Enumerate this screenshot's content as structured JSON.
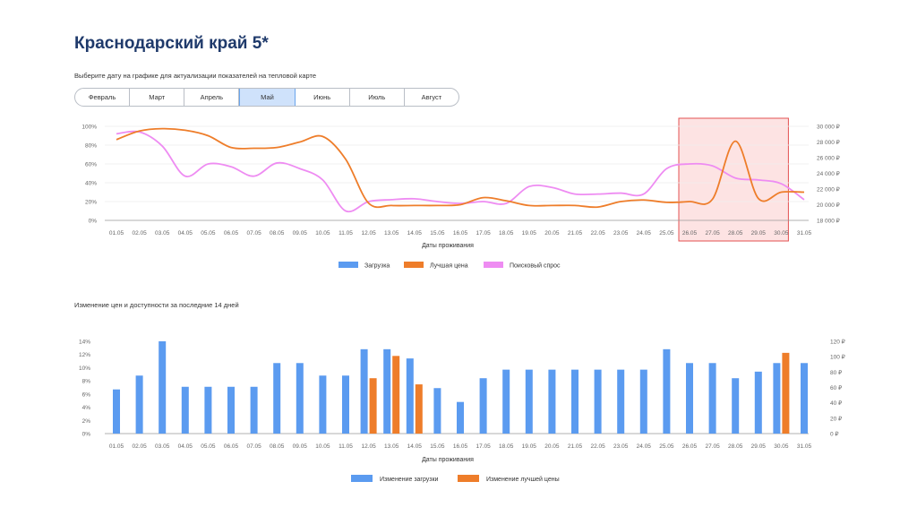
{
  "header": {
    "title": "Краснодарский край 5*",
    "hint": "Выберите дату на графике для актуализации показателей на тепловой карте"
  },
  "months": [
    "Февраль",
    "Март",
    "Апрель",
    "Май",
    "Июнь",
    "Июль",
    "Август"
  ],
  "active_month": "Май",
  "section2_title": "Изменение цен и доступности за последние 14 дней",
  "colors": {
    "blue": "#5b9bf0",
    "orange": "#ee7d2a",
    "violet": "#ee8cf2",
    "weekend": "#ee7d2a",
    "highlight_fill": "#fde3e3",
    "highlight_stroke": "#e35050"
  },
  "dates": [
    "01.05",
    "02.05",
    "03.05",
    "04.05",
    "05.05",
    "06.05",
    "07.05",
    "08.05",
    "09.05",
    "10.05",
    "11.05",
    "12.05",
    "13.05",
    "14.05",
    "15.05",
    "16.05",
    "17.05",
    "18.05",
    "19.05",
    "20.05",
    "21.05",
    "22.05",
    "23.05",
    "24.05",
    "25.05",
    "26.05",
    "27.05",
    "28.05",
    "29.05",
    "30.05",
    "31.05"
  ],
  "weekend_dates": [
    "03.05",
    "04.05",
    "10.05",
    "11.05",
    "17.05",
    "18.05",
    "24.05",
    "25.05",
    "31.05"
  ],
  "chart_data": [
    {
      "type": "line",
      "xlabel": "Даты проживания",
      "y_left_ticks": [
        "0%",
        "20%",
        "40%",
        "60%",
        "80%",
        "100%"
      ],
      "y_right_ticks": [
        "18 000 ₽",
        "20 000 ₽",
        "22 000 ₽",
        "24 000 ₽",
        "26 000 ₽",
        "28 000 ₽",
        "30 000 ₽"
      ],
      "ylim_left": [
        0,
        100
      ],
      "ylim_right": [
        18000,
        30000
      ],
      "highlight_range": [
        "26.05",
        "30.05"
      ],
      "series": [
        {
          "name": "Загрузка",
          "axis": "left",
          "values": []
        },
        {
          "name": "Лучшая цена",
          "axis": "right",
          "values": [
            28300,
            29400,
            29700,
            29500,
            28800,
            27300,
            27200,
            27300,
            28000,
            28700,
            25800,
            20200,
            19900,
            19900,
            19900,
            20000,
            20900,
            20500,
            19900,
            19900,
            19900,
            19700,
            20400,
            20600,
            20300,
            20400,
            20700,
            28100,
            20800,
            21600,
            21600
          ]
        },
        {
          "name": "Поисковый спрос",
          "axis": "left",
          "values": [
            92,
            94,
            79,
            47,
            60,
            57,
            47,
            61,
            55,
            43,
            10,
            20,
            22,
            23,
            20,
            18,
            20,
            18,
            36,
            35,
            28,
            28,
            29,
            28,
            55,
            60,
            58,
            45,
            43,
            39,
            22
          ]
        }
      ],
      "legend": [
        "Загрузка",
        "Лучшая цена",
        "Поисковый спрос"
      ]
    },
    {
      "type": "bar",
      "xlabel": "Даты проживания",
      "y_left_ticks": [
        "0%",
        "2%",
        "4%",
        "6%",
        "8%",
        "10%",
        "12%",
        "14%"
      ],
      "y_right_ticks": [
        "0 ₽",
        "20 ₽",
        "40 ₽",
        "60 ₽",
        "80 ₽",
        "100 ₽",
        "120 ₽"
      ],
      "ylim_left": [
        0,
        14
      ],
      "ylim_right": [
        0,
        120
      ],
      "series": [
        {
          "name": "Изменение загрузки",
          "axis": "left",
          "values": [
            6.7,
            8.8,
            14,
            7.1,
            7.1,
            7.1,
            7.1,
            10.7,
            10.7,
            8.8,
            8.8,
            12.8,
            12.8,
            11.4,
            6.9,
            4.8,
            8.4,
            9.7,
            9.7,
            9.7,
            9.7,
            9.7,
            9.7,
            9.7,
            12.8,
            10.7,
            10.7,
            8.4,
            9.4,
            10.7,
            10.7
          ]
        },
        {
          "name": "Изменение лучшей цены",
          "axis": "right",
          "values": [
            0,
            0,
            0,
            0,
            0,
            0,
            0,
            0,
            0,
            0,
            0,
            72,
            101,
            64,
            0,
            0,
            0,
            0,
            0,
            0,
            0,
            0,
            0,
            0,
            0,
            0,
            0,
            0,
            0,
            105,
            0
          ]
        }
      ],
      "legend": [
        "Изменение загрузки",
        "Изменение лучшей цены"
      ]
    }
  ]
}
